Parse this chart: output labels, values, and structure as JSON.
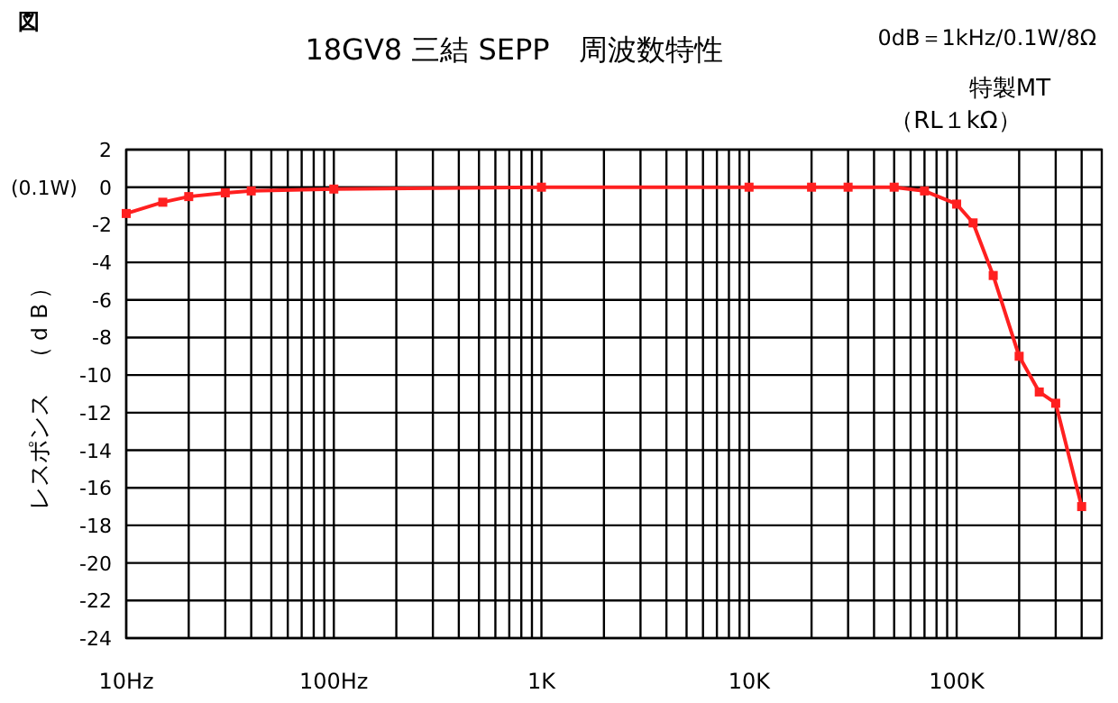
{
  "chart_data": {
    "type": "line",
    "title": "18GV8 三結 SEPP　周波数特性",
    "ylabel": "レスポンス　（ｄＢ）",
    "annotations": [
      "図",
      "0dB＝1kHz/0.1W/8Ω",
      "特製MT",
      "（RL１kΩ）",
      "(0.1W)"
    ],
    "x": [
      10,
      15,
      20,
      30,
      40,
      100,
      1000,
      10000,
      20000,
      30000,
      50000,
      70000,
      100000,
      120000,
      150000,
      200000,
      250000,
      300000,
      400000
    ],
    "series": [
      {
        "color": "#ff2020",
        "values": [
          -1.4,
          -0.8,
          -0.5,
          -0.3,
          -0.2,
          -0.1,
          0,
          0,
          0,
          0,
          0,
          -0.2,
          -0.9,
          -1.9,
          -4.7,
          -9,
          -10.9,
          -11.5,
          -17
        ]
      }
    ],
    "log": "x",
    "xlim": [
      10,
      500000
    ],
    "xticks": [
      {
        "value": 10,
        "label": "10Hz"
      },
      {
        "value": 20,
        "label": null
      },
      {
        "value": 30,
        "label": null
      },
      {
        "value": 40,
        "label": null
      },
      {
        "value": 50,
        "label": null
      },
      {
        "value": 60,
        "label": null
      },
      {
        "value": 70,
        "label": null
      },
      {
        "value": 80,
        "label": null
      },
      {
        "value": 90,
        "label": null
      },
      {
        "value": 100,
        "label": "100Hz"
      },
      {
        "value": 200,
        "label": null
      },
      {
        "value": 300,
        "label": null
      },
      {
        "value": 400,
        "label": null
      },
      {
        "value": 500,
        "label": null
      },
      {
        "value": 600,
        "label": null
      },
      {
        "value": 700,
        "label": null
      },
      {
        "value": 800,
        "label": null
      },
      {
        "value": 900,
        "label": null
      },
      {
        "value": 1000,
        "label": "1K"
      },
      {
        "value": 2000,
        "label": null
      },
      {
        "value": 3000,
        "label": null
      },
      {
        "value": 4000,
        "label": null
      },
      {
        "value": 5000,
        "label": null
      },
      {
        "value": 6000,
        "label": null
      },
      {
        "value": 7000,
        "label": null
      },
      {
        "value": 8000,
        "label": null
      },
      {
        "value": 9000,
        "label": null
      },
      {
        "value": 10000,
        "label": "10K"
      },
      {
        "value": 20000,
        "label": null
      },
      {
        "value": 30000,
        "label": null
      },
      {
        "value": 40000,
        "label": null
      },
      {
        "value": 50000,
        "label": null
      },
      {
        "value": 60000,
        "label": null
      },
      {
        "value": 70000,
        "label": null
      },
      {
        "value": 80000,
        "label": null
      },
      {
        "value": 90000,
        "label": null
      },
      {
        "value": 100000,
        "label": "100K"
      },
      {
        "value": 200000,
        "label": null
      },
      {
        "value": 300000,
        "label": null
      },
      {
        "value": 400000,
        "label": null
      }
    ],
    "ylim": [
      -24,
      2
    ],
    "yticks": [
      2,
      0,
      -2,
      -4,
      -6,
      -8,
      -10,
      -12,
      -14,
      -16,
      -18,
      -20,
      -22,
      -24
    ],
    "grid": true,
    "marker": "square",
    "line_style": "solid"
  }
}
